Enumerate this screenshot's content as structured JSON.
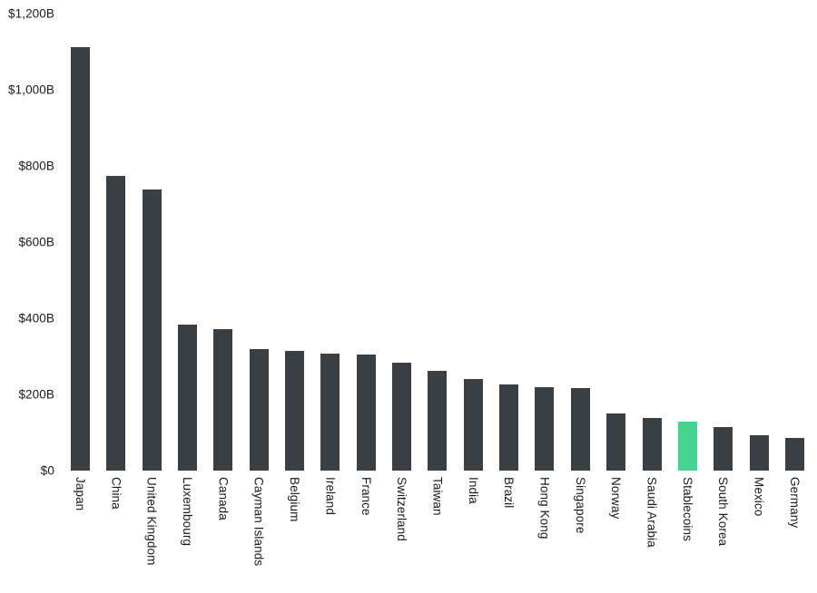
{
  "chart_data": {
    "type": "bar",
    "title": "",
    "xlabel": "",
    "ylabel": "",
    "ylim": [
      0,
      1200
    ],
    "grid": false,
    "legend": false,
    "bar_color": "#393f43",
    "highlight_category": "Stablecoins",
    "highlight_color": "#46d48e",
    "categories": [
      "Japan",
      "China",
      "United Kingdom",
      "Luxembourg",
      "Canada",
      "Cayman Islands",
      "Belgium",
      "Ireland",
      "France",
      "Switzerland",
      "Taiwan",
      "India",
      "Brazil",
      "Hong Kong",
      "Singapore",
      "Norway",
      "Saudi Arabia",
      "Stablecoins",
      "South Korea",
      "Mexico",
      "Germany"
    ],
    "values": [
      1113,
      775,
      738,
      384,
      371,
      318,
      315,
      306,
      304,
      283,
      262,
      240,
      226,
      219,
      217,
      150,
      138,
      128,
      115,
      94,
      86
    ],
    "value_unit": "$B",
    "yticks": [
      {
        "value": 0,
        "label": "$0"
      },
      {
        "value": 200,
        "label": "$200B"
      },
      {
        "value": 400,
        "label": "$400B"
      },
      {
        "value": 600,
        "label": "$600B"
      },
      {
        "value": 800,
        "label": "$800B"
      },
      {
        "value": 1000,
        "label": "$1,000B"
      },
      {
        "value": 1200,
        "label": "$1,200B"
      }
    ]
  }
}
